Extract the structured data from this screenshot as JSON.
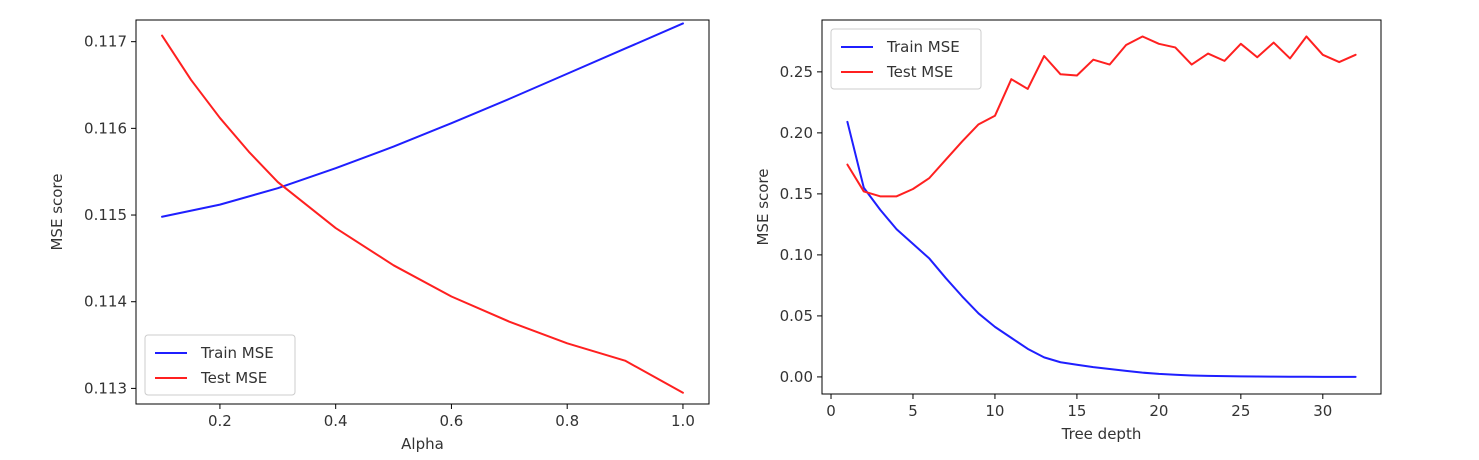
{
  "chart_data": [
    {
      "type": "line",
      "xlabel": "Alpha",
      "ylabel": "MSE score",
      "xlim": [
        0.055,
        1.045
      ],
      "ylim": [
        0.11282,
        0.11725
      ],
      "xticks": [
        0.2,
        0.4,
        0.6,
        0.8,
        1.0
      ],
      "xtick_labels": [
        "0.2",
        "0.4",
        "0.6",
        "0.8",
        "1.0"
      ],
      "yticks": [
        0.113,
        0.114,
        0.115,
        0.116,
        0.117
      ],
      "ytick_labels": [
        "0.113",
        "0.114",
        "0.115",
        "0.116",
        "0.117"
      ],
      "legend_location": "lower-left",
      "grid": false,
      "series": [
        {
          "name": "Train MSE",
          "color": "#1f1fff",
          "x": [
            0.1,
            0.2,
            0.3,
            0.4,
            0.5,
            0.6,
            0.7,
            0.8,
            0.9,
            1.0
          ],
          "values": [
            0.11498,
            0.11512,
            0.11531,
            0.11554,
            0.11579,
            0.11606,
            0.11634,
            0.11663,
            0.11692,
            0.11721
          ]
        },
        {
          "name": "Test MSE",
          "color": "#ff2020",
          "x": [
            0.1,
            0.15,
            0.2,
            0.25,
            0.3,
            0.4,
            0.5,
            0.6,
            0.7,
            0.8,
            0.9,
            1.0
          ],
          "values": [
            0.11707,
            0.11656,
            0.11612,
            0.11573,
            0.11538,
            0.11485,
            0.11442,
            0.11406,
            0.11377,
            0.11352,
            0.11332,
            0.11295
          ]
        }
      ]
    },
    {
      "type": "line",
      "xlabel": "Tree depth",
      "ylabel": "MSE score",
      "xlim": [
        -0.55,
        33.55
      ],
      "ylim": [
        -0.014,
        0.2925
      ],
      "xticks": [
        0,
        5,
        10,
        15,
        20,
        25,
        30
      ],
      "xtick_labels": [
        "0",
        "5",
        "10",
        "15",
        "20",
        "25",
        "30"
      ],
      "yticks": [
        0.0,
        0.05,
        0.1,
        0.15,
        0.2,
        0.25
      ],
      "ytick_labels": [
        "0.00",
        "0.05",
        "0.10",
        "0.15",
        "0.20",
        "0.25"
      ],
      "legend_location": "upper-left",
      "grid": false,
      "series": [
        {
          "name": "Train MSE",
          "color": "#1f1fff",
          "x": [
            1,
            2,
            3,
            4,
            5,
            6,
            7,
            8,
            9,
            10,
            11,
            12,
            13,
            14,
            15,
            16,
            17,
            18,
            19,
            20,
            21,
            22,
            23,
            24,
            25,
            26,
            27,
            28,
            29,
            30,
            31,
            32
          ],
          "values": [
            0.209,
            0.155,
            0.137,
            0.121,
            0.109,
            0.097,
            0.081,
            0.066,
            0.052,
            0.041,
            0.032,
            0.023,
            0.016,
            0.012,
            0.01,
            0.008,
            0.0065,
            0.005,
            0.0035,
            0.0025,
            0.0018,
            0.0012,
            0.0009,
            0.0006,
            0.0004,
            0.0003,
            0.0002,
            0.0001,
            0.0001,
            0.0,
            0.0,
            0.0
          ]
        },
        {
          "name": "Test MSE",
          "color": "#ff2020",
          "x": [
            1,
            2,
            3,
            4,
            5,
            6,
            7,
            8,
            9,
            10,
            11,
            12,
            13,
            14,
            15,
            16,
            17,
            18,
            19,
            20,
            21,
            22,
            23,
            24,
            25,
            26,
            27,
            28,
            29,
            30,
            31,
            32
          ],
          "values": [
            0.174,
            0.152,
            0.148,
            0.148,
            0.154,
            0.163,
            0.178,
            0.193,
            0.207,
            0.214,
            0.244,
            0.236,
            0.263,
            0.248,
            0.247,
            0.26,
            0.256,
            0.272,
            0.279,
            0.273,
            0.27,
            0.256,
            0.265,
            0.259,
            0.273,
            0.262,
            0.274,
            0.261,
            0.279,
            0.264,
            0.258,
            0.264
          ]
        }
      ]
    }
  ]
}
